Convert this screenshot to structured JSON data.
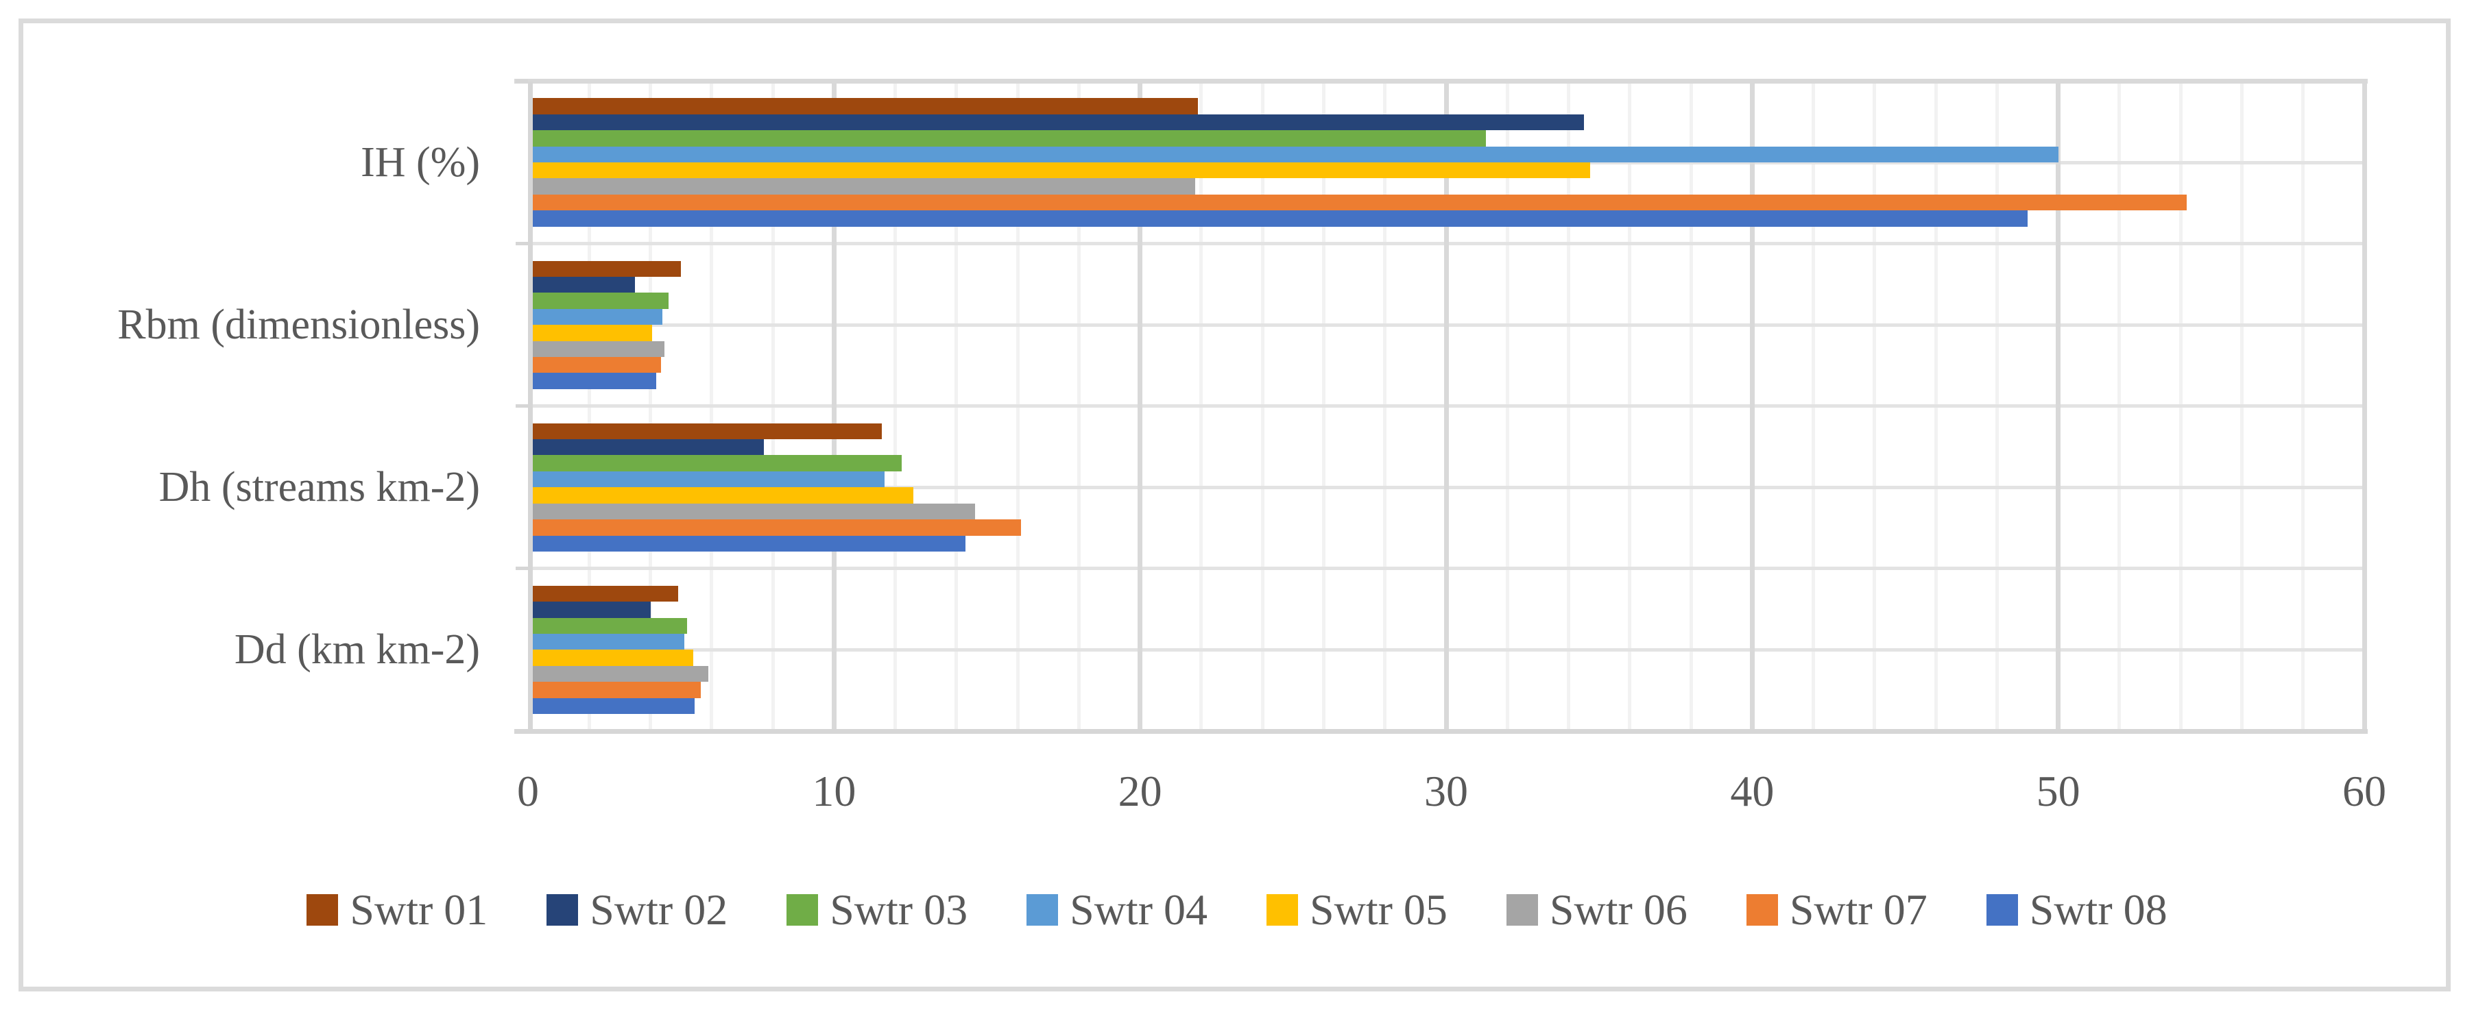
{
  "figure": {
    "background": "#FFFFFF",
    "border_color": "#DBDBDB",
    "text_color": "#595959",
    "axis_color": "#D6D6D6",
    "major_grid_color": "#D9D9D9",
    "minor_grid_color": "#F2F2F2",
    "row_grid_color": "#E3E3E3"
  },
  "chart_data": {
    "type": "bar",
    "orientation": "horizontal",
    "title": "",
    "xlabel": "",
    "ylabel": "",
    "xlim": [
      0,
      60
    ],
    "x_ticks": [
      0,
      10,
      20,
      30,
      40,
      50,
      60
    ],
    "x_tick_labels": [
      "0",
      "10",
      "20",
      "30",
      "40",
      "50",
      "60"
    ],
    "x_minor_tick_step": 2,
    "grid": true,
    "legend_position": "bottom",
    "categories": [
      "IH (%)",
      "Rbm (dimensionless)",
      "Dh (streams km-2)",
      "Dd (km km-2)"
    ],
    "series": [
      {
        "name": "Swtr 01",
        "color": "#9E480E",
        "values": [
          21.9,
          5.0,
          11.55,
          4.9
        ]
      },
      {
        "name": "Swtr 02",
        "color": "#264478",
        "values": [
          34.5,
          3.5,
          7.7,
          4.0
        ]
      },
      {
        "name": "Swtr 03",
        "color": "#70AD47",
        "values": [
          31.3,
          4.6,
          12.2,
          5.2
        ]
      },
      {
        "name": "Swtr 04",
        "color": "#5B9BD5",
        "values": [
          50.0,
          4.4,
          11.65,
          5.1
        ]
      },
      {
        "name": "Swtr 05",
        "color": "#FFC000",
        "values": [
          34.7,
          4.05,
          12.6,
          5.4
        ]
      },
      {
        "name": "Swtr 06",
        "color": "#A5A5A5",
        "values": [
          21.8,
          4.45,
          14.6,
          5.9
        ]
      },
      {
        "name": "Swtr 07",
        "color": "#ED7D31",
        "values": [
          54.2,
          4.35,
          16.1,
          5.65
        ]
      },
      {
        "name": "Swtr 08",
        "color": "#4472C4",
        "values": [
          49.0,
          4.2,
          14.3,
          5.45
        ]
      }
    ]
  }
}
